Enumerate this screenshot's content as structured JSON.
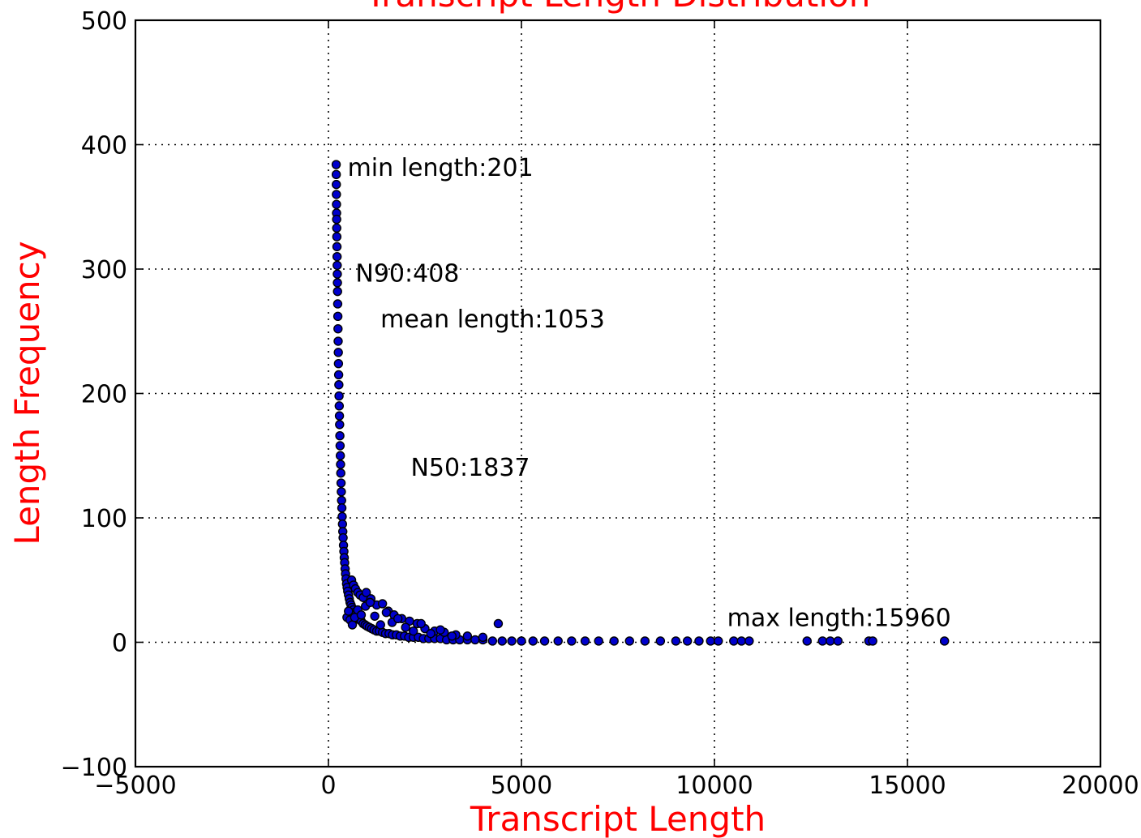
{
  "chart_data": {
    "type": "scatter",
    "title": "Transcript Length Distribution",
    "xlabel": "Transcript Length",
    "ylabel": "Length Frequency",
    "xlim": [
      -5000,
      20000
    ],
    "ylim": [
      -100,
      500
    ],
    "xticks": [
      "−5000",
      "0",
      "5000",
      "10000",
      "15000",
      "20000"
    ],
    "yticks": [
      "−100",
      "0",
      "100",
      "200",
      "300",
      "400",
      "500"
    ],
    "xtick_values": [
      -5000,
      0,
      5000,
      10000,
      15000,
      20000
    ],
    "ytick_values": [
      -100,
      0,
      100,
      200,
      300,
      400,
      500
    ],
    "grid": true,
    "colors": {
      "points": "#0000cc",
      "title": "#ff0000",
      "labels": "#ff0000"
    },
    "annotations": [
      {
        "text": "min length:201",
        "x": 201,
        "y": 375
      },
      {
        "text": "N90:408",
        "x": 408,
        "y": 290
      },
      {
        "text": "mean length:1053",
        "x": 1053,
        "y": 253
      },
      {
        "text": "N50:1837",
        "x": 1837,
        "y": 134
      },
      {
        "text": "max length:15960",
        "x": 15960,
        "y": 13
      }
    ],
    "series": [
      {
        "x": [
          201,
          203,
          205,
          207,
          209,
          211,
          213,
          215,
          218,
          221,
          224,
          227,
          230,
          233,
          236,
          240,
          244,
          248,
          252,
          256,
          260,
          265,
          270,
          275,
          280,
          285,
          290,
          296,
          302,
          308,
          314,
          320,
          327,
          334,
          341,
          348,
          356,
          364,
          372,
          380,
          390,
          400,
          410,
          420,
          432,
          444,
          456,
          470,
          485,
          500,
          520,
          540,
          560,
          585,
          610,
          640,
          670,
          700,
          735,
          770,
          810,
          850,
          900,
          950,
          1000,
          1060,
          1120,
          1180,
          1250,
          1320,
          1400,
          1480,
          1570,
          1660,
          1760,
          1860,
          1970,
          2080,
          2200,
          2330,
          2460,
          2600,
          2750,
          2900,
          3060,
          3230,
          3400,
          3600,
          3800,
          4000,
          4250,
          4500,
          4750,
          5000,
          5300,
          5600,
          5950,
          6300,
          6650,
          7000,
          7400,
          7800,
          8200,
          8600,
          9000,
          9300,
          9600,
          9900,
          10100,
          10500,
          10700,
          10900,
          12400,
          12800,
          13000,
          13200,
          14000,
          14100,
          15960,
          600,
          650,
          700,
          760,
          820,
          900,
          980,
          1100,
          1250,
          1400,
          1550,
          1700,
          1900,
          2100,
          2300,
          2500,
          2750,
          3000,
          3300,
          3600,
          4000,
          4400,
          480,
          520,
          560,
          620,
          680,
          760,
          850,
          960,
          1080,
          1200,
          1350,
          1500,
          1650,
          1800,
          2000,
          2200,
          2400,
          2650,
          2900,
          3200
        ],
        "y": [
          384,
          376,
          368,
          360,
          352,
          345,
          340,
          333,
          326,
          318,
          310,
          303,
          296,
          289,
          282,
          272,
          262,
          252,
          242,
          233,
          224,
          215,
          207,
          198,
          190,
          182,
          175,
          166,
          158,
          150,
          143,
          136,
          128,
          121,
          114,
          108,
          101,
          95,
          89,
          84,
          78,
          73,
          68,
          64,
          59,
          55,
          51,
          47,
          44,
          41,
          38,
          35,
          32,
          30,
          28,
          26,
          24,
          22,
          21,
          19,
          18,
          17,
          15,
          14,
          13,
          12,
          11,
          10,
          9,
          9,
          8,
          7,
          7,
          6,
          6,
          5,
          5,
          4,
          4,
          4,
          3,
          3,
          3,
          3,
          2,
          2,
          2,
          2,
          2,
          2,
          1,
          1,
          1,
          1,
          1,
          1,
          1,
          1,
          1,
          1,
          1,
          1,
          1,
          1,
          1,
          1,
          1,
          1,
          1,
          1,
          1,
          1,
          1,
          1,
          1,
          1,
          1,
          1,
          1,
          50,
          46,
          43,
          40,
          38,
          36,
          40,
          35,
          30,
          31,
          25,
          22,
          19,
          17,
          15,
          11,
          9,
          8,
          6,
          5,
          4,
          15,
          20,
          25,
          18,
          14,
          20,
          26,
          22,
          29,
          32,
          21,
          14,
          24,
          16,
          19,
          12,
          9,
          15,
          7,
          10,
          5
        ]
      }
    ]
  }
}
